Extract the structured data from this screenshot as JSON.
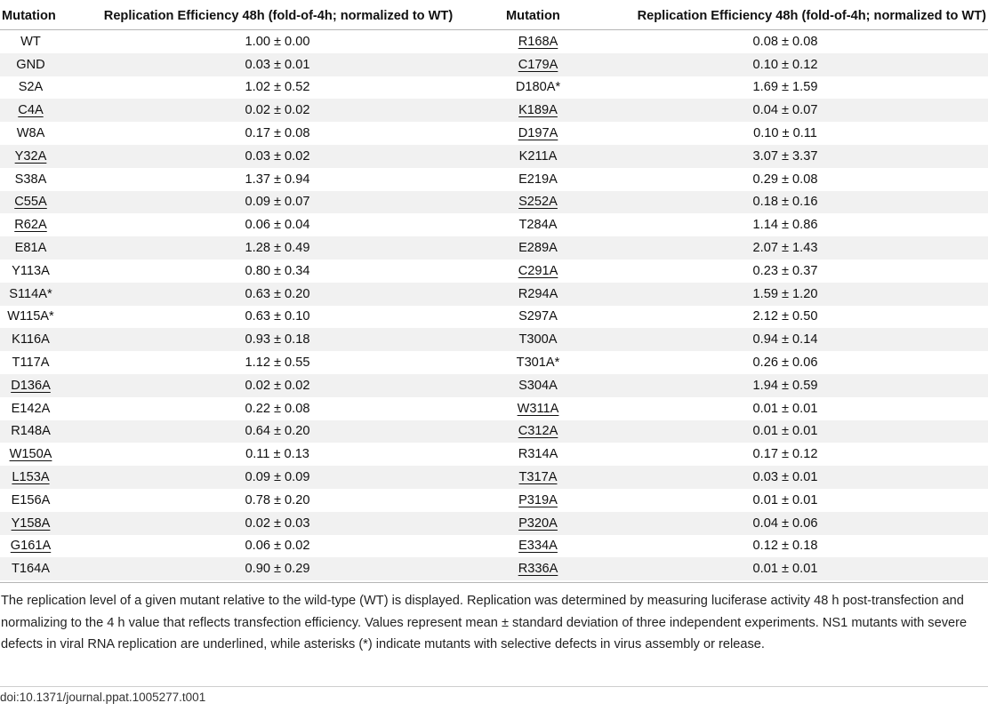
{
  "table": {
    "headers": {
      "mutation": "Mutation",
      "efficiency": "Replication Efficiency 48h (fold-of-4h; normalized to WT)"
    },
    "left": [
      {
        "m": "WT",
        "v": "1.00 ± 0.00",
        "u": false
      },
      {
        "m": "GND",
        "v": "0.03 ± 0.01",
        "u": false
      },
      {
        "m": "S2A",
        "v": "1.02 ± 0.52",
        "u": false
      },
      {
        "m": "C4A",
        "v": "0.02 ± 0.02",
        "u": true
      },
      {
        "m": "W8A",
        "v": "0.17 ± 0.08",
        "u": false
      },
      {
        "m": "Y32A",
        "v": "0.03 ± 0.02",
        "u": true
      },
      {
        "m": "S38A",
        "v": "1.37 ± 0.94",
        "u": false
      },
      {
        "m": "C55A",
        "v": "0.09 ± 0.07",
        "u": true
      },
      {
        "m": "R62A",
        "v": "0.06 ± 0.04",
        "u": true
      },
      {
        "m": "E81A",
        "v": "1.28 ± 0.49",
        "u": false
      },
      {
        "m": "Y113A",
        "v": "0.80 ± 0.34",
        "u": false
      },
      {
        "m": "S114A*",
        "v": "0.63 ± 0.20",
        "u": false
      },
      {
        "m": "W115A*",
        "v": "0.63 ± 0.10",
        "u": false
      },
      {
        "m": "K116A",
        "v": "0.93 ± 0.18",
        "u": false
      },
      {
        "m": "T117A",
        "v": "1.12 ± 0.55",
        "u": false
      },
      {
        "m": "D136A",
        "v": "0.02 ± 0.02",
        "u": true
      },
      {
        "m": "E142A",
        "v": "0.22 ± 0.08",
        "u": false
      },
      {
        "m": "R148A",
        "v": "0.64 ± 0.20",
        "u": false
      },
      {
        "m": "W150A",
        "v": "0.11 ± 0.13",
        "u": true
      },
      {
        "m": "L153A",
        "v": "0.09 ± 0.09",
        "u": true
      },
      {
        "m": "E156A",
        "v": "0.78 ± 0.20",
        "u": false
      },
      {
        "m": "Y158A",
        "v": "0.02 ± 0.03",
        "u": true
      },
      {
        "m": "G161A",
        "v": "0.06 ± 0.02",
        "u": true
      },
      {
        "m": "T164A",
        "v": "0.90 ± 0.29",
        "u": false
      }
    ],
    "right": [
      {
        "m": "R168A",
        "v": "0.08 ± 0.08",
        "u": true
      },
      {
        "m": "C179A",
        "v": "0.10 ± 0.12",
        "u": true
      },
      {
        "m": "D180A*",
        "v": "1.69 ± 1.59",
        "u": false
      },
      {
        "m": "K189A",
        "v": "0.04 ± 0.07",
        "u": true
      },
      {
        "m": "D197A",
        "v": "0.10 ± 0.11",
        "u": true
      },
      {
        "m": "K211A",
        "v": "3.07 ± 3.37",
        "u": false
      },
      {
        "m": "E219A",
        "v": "0.29 ± 0.08",
        "u": false
      },
      {
        "m": "S252A",
        "v": "0.18 ± 0.16",
        "u": true
      },
      {
        "m": "T284A",
        "v": "1.14 ± 0.86",
        "u": false
      },
      {
        "m": "E289A",
        "v": "2.07 ± 1.43",
        "u": false
      },
      {
        "m": "C291A",
        "v": "0.23 ± 0.37",
        "u": true
      },
      {
        "m": "R294A",
        "v": "1.59 ± 1.20",
        "u": false
      },
      {
        "m": "S297A",
        "v": "2.12 ± 0.50",
        "u": false
      },
      {
        "m": "T300A",
        "v": "0.94 ± 0.14",
        "u": false
      },
      {
        "m": "T301A*",
        "v": "0.26 ± 0.06",
        "u": false
      },
      {
        "m": "S304A",
        "v": "1.94 ± 0.59",
        "u": false
      },
      {
        "m": "W311A",
        "v": "0.01 ± 0.01",
        "u": true
      },
      {
        "m": "C312A",
        "v": "0.01 ± 0.01",
        "u": true
      },
      {
        "m": "R314A",
        "v": "0.17 ± 0.12",
        "u": false
      },
      {
        "m": "T317A",
        "v": "0.03 ± 0.01",
        "u": true
      },
      {
        "m": "P319A",
        "v": "0.01 ± 0.01",
        "u": true
      },
      {
        "m": "P320A",
        "v": "0.04 ± 0.06",
        "u": true
      },
      {
        "m": "E334A",
        "v": "0.12 ± 0.18",
        "u": true
      },
      {
        "m": "R336A",
        "v": "0.01 ± 0.01",
        "u": true
      }
    ]
  },
  "footnote": "The replication level of a given mutant relative to the wild-type (WT) is displayed. Replication was determined by measuring luciferase activity 48 h post-transfection and normalizing to the 4 h value that reflects transfection efficiency. Values represent mean ± standard deviation of three independent experiments. NS1 mutants with severe defects in viral RNA replication are underlined, while asterisks (*) indicate mutants with selective defects in virus assembly or release.",
  "doi": "doi:10.1371/journal.ppat.1005277.t001",
  "colors": {
    "row_stripe": "#f1f1f1",
    "rule": "#b5b5b5",
    "text": "#111111"
  }
}
